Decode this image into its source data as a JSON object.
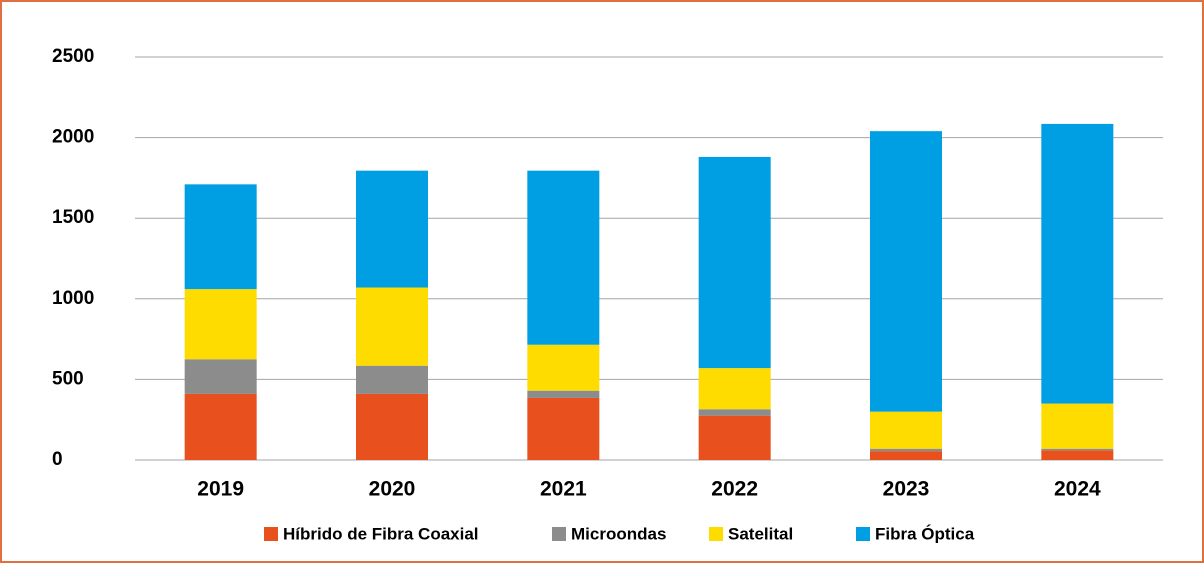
{
  "chart_data": {
    "type": "stacked_bar",
    "categories": [
      "2019",
      "2020",
      "2021",
      "2022",
      "2023",
      "2024"
    ],
    "series": [
      {
        "name": "Híbrido de Fibra Coaxial",
        "color": "#e8501e",
        "values": [
          410,
          410,
          385,
          275,
          55,
          60
        ]
      },
      {
        "name": "Microondas",
        "color": "#8c8c8c",
        "values": [
          215,
          175,
          45,
          40,
          15,
          10
        ]
      },
      {
        "name": "Satelital",
        "color": "#ffdc00",
        "values": [
          435,
          485,
          285,
          255,
          230,
          280
        ]
      },
      {
        "name": "Fibra Óptica",
        "color": "#009fe3",
        "values": [
          650,
          725,
          1080,
          1310,
          1740,
          1735
        ]
      }
    ],
    "ylim": [
      0,
      2500
    ],
    "yticks": [
      0,
      500,
      1000,
      1500,
      2000,
      2500
    ],
    "grid": true
  }
}
